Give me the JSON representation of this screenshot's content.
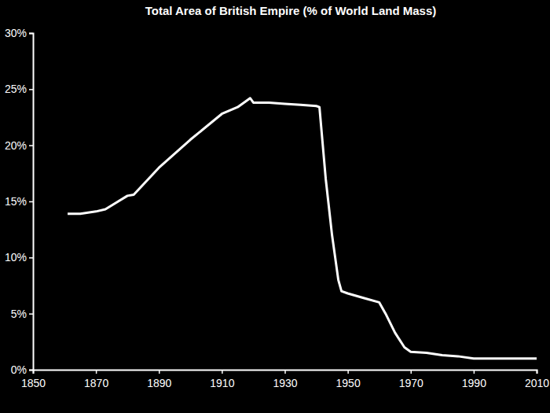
{
  "chart_data": {
    "type": "line",
    "title": "Total Area of British Empire (% of World Land Mass)",
    "x": [
      1861,
      1865,
      1870,
      1873,
      1880,
      1882,
      1890,
      1900,
      1910,
      1915,
      1919,
      1920,
      1925,
      1930,
      1935,
      1940,
      1941,
      1943,
      1945,
      1947,
      1948,
      1950,
      1955,
      1960,
      1962,
      1965,
      1968,
      1970,
      1975,
      1980,
      1985,
      1990,
      2000,
      2010
    ],
    "values": [
      13.9,
      13.9,
      14.1,
      14.3,
      15.5,
      15.6,
      18.0,
      20.5,
      22.8,
      23.4,
      24.2,
      23.8,
      23.8,
      23.7,
      23.6,
      23.5,
      23.4,
      17.0,
      12.0,
      8.0,
      7.0,
      6.8,
      6.4,
      6.0,
      5.0,
      3.3,
      2.0,
      1.6,
      1.5,
      1.3,
      1.2,
      1.0,
      1.0,
      1.0
    ],
    "color": "#ffffff",
    "xlim": [
      1850,
      2010
    ],
    "xticks": [
      1850,
      1870,
      1890,
      1910,
      1930,
      1950,
      1970,
      1990,
      2010
    ],
    "ylim": [
      0,
      30
    ],
    "yticks": [
      {
        "value": 0,
        "label": "0%"
      },
      {
        "value": 5,
        "label": "5%"
      },
      {
        "value": 10,
        "label": "10%"
      },
      {
        "value": 15,
        "label": "15%"
      },
      {
        "value": 20,
        "label": "20%"
      },
      {
        "value": 25,
        "label": "25%"
      },
      {
        "value": 30,
        "label": "30%"
      }
    ],
    "grid": false
  }
}
